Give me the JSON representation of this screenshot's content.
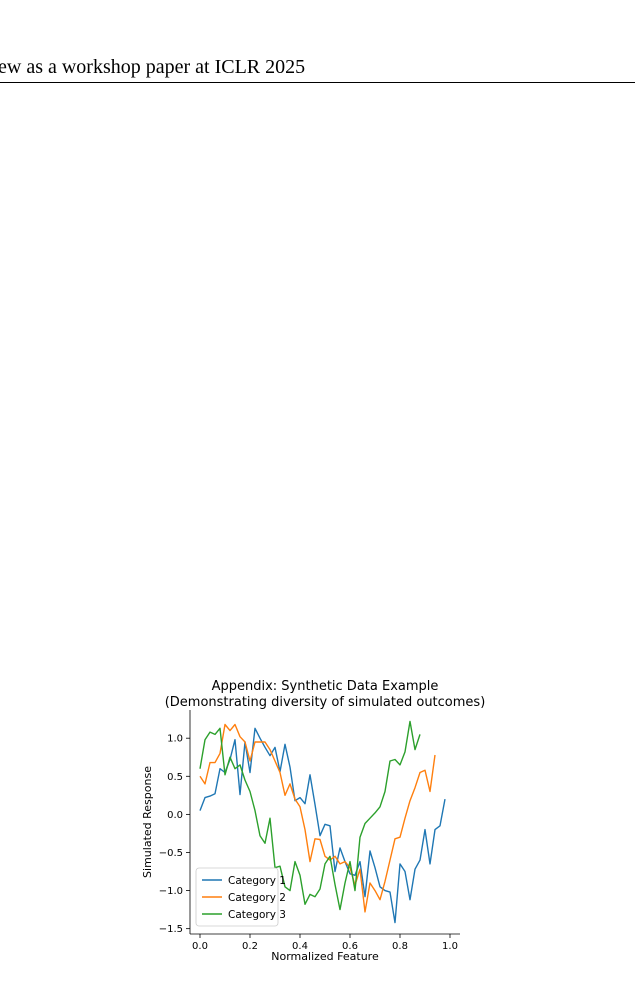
{
  "header": {
    "text": "ew as a workshop paper at ICLR 2025"
  },
  "chart_data": {
    "type": "line",
    "title": "Appendix: Synthetic Data Example",
    "subtitle": "(Demonstrating diversity of simulated outcomes)",
    "xlabel": "Normalized Feature",
    "ylabel": "Simulated Response",
    "xlim": [
      -0.04,
      1.04
    ],
    "ylim": [
      -1.57,
      1.37
    ],
    "xticks": [
      0.0,
      0.2,
      0.4,
      0.6,
      0.8,
      1.0
    ],
    "xtick_labels": [
      "0.0",
      "0.2",
      "0.4",
      "0.6",
      "0.8",
      "1.0"
    ],
    "yticks": [
      -1.5,
      -1.0,
      -0.5,
      0.0,
      0.5,
      1.0
    ],
    "ytick_labels": [
      "−1.5",
      "−1.0",
      "−0.5",
      "0.0",
      "0.5",
      "1.0"
    ],
    "grid": false,
    "legend_position": "lower-left",
    "x": [
      0.0,
      0.02,
      0.04,
      0.06,
      0.08,
      0.1,
      0.12,
      0.14,
      0.16,
      0.18,
      0.2,
      0.22,
      0.24,
      0.26,
      0.28,
      0.3,
      0.32,
      0.34,
      0.36,
      0.38,
      0.4,
      0.42,
      0.44,
      0.46,
      0.48,
      0.5,
      0.52,
      0.54,
      0.56,
      0.58,
      0.6,
      0.62,
      0.64,
      0.66,
      0.68,
      0.7,
      0.72,
      0.74,
      0.76,
      0.78,
      0.8,
      0.82,
      0.84,
      0.86,
      0.88,
      0.9,
      0.92,
      0.94,
      0.96,
      0.98,
      1.0
    ],
    "series": [
      {
        "name": "Category 1",
        "color": "#1f77b4",
        "values": [
          0.05,
          0.22,
          0.24,
          0.27,
          0.6,
          0.55,
          0.72,
          0.98,
          0.26,
          0.95,
          0.55,
          1.13,
          1.0,
          0.88,
          0.77,
          0.88,
          0.56,
          0.92,
          0.62,
          0.18,
          0.22,
          0.14,
          0.52,
          0.13,
          -0.28,
          -0.13,
          -0.15,
          -0.75,
          -0.44,
          -0.62,
          -0.78,
          -0.8,
          -0.62,
          -1.08,
          -0.48,
          -0.7,
          -0.95,
          -1.0,
          -1.02,
          -1.42,
          -0.65,
          -0.75,
          -1.12,
          -0.72,
          -0.6,
          -0.2,
          -0.65,
          -0.2,
          -0.15,
          0.2,
          null
        ]
      },
      {
        "name": "Category 2",
        "color": "#ff7f0e",
        "values": [
          0.5,
          0.4,
          0.68,
          0.68,
          0.8,
          1.18,
          1.1,
          1.18,
          1.02,
          0.95,
          0.7,
          0.95,
          0.95,
          0.95,
          0.85,
          0.7,
          0.55,
          0.25,
          0.4,
          0.2,
          0.1,
          -0.2,
          -0.62,
          -0.32,
          -0.33,
          -0.55,
          -0.6,
          -0.55,
          -0.65,
          -0.62,
          -0.7,
          -0.93,
          -0.72,
          -1.28,
          -0.9,
          -1.0,
          -1.12,
          -0.88,
          -0.6,
          -0.32,
          -0.3,
          -0.05,
          0.18,
          0.35,
          0.55,
          0.58,
          0.3,
          0.78,
          null,
          null,
          null
        ]
      },
      {
        "name": "Category 3",
        "color": "#2ca02c",
        "values": [
          0.6,
          0.98,
          1.08,
          1.05,
          1.13,
          0.52,
          0.75,
          0.6,
          0.65,
          0.45,
          0.3,
          0.05,
          -0.28,
          -0.38,
          -0.05,
          -0.7,
          -0.68,
          -0.95,
          -1.0,
          -0.62,
          -0.8,
          -1.18,
          -1.05,
          -1.08,
          -0.98,
          -0.65,
          -0.55,
          -0.92,
          -1.25,
          -0.9,
          -0.62,
          -1.0,
          -0.3,
          -0.12,
          -0.05,
          0.02,
          0.1,
          0.3,
          0.7,
          0.72,
          0.65,
          0.82,
          1.22,
          0.85,
          1.05,
          null,
          null,
          null,
          null,
          null,
          null
        ]
      }
    ]
  }
}
